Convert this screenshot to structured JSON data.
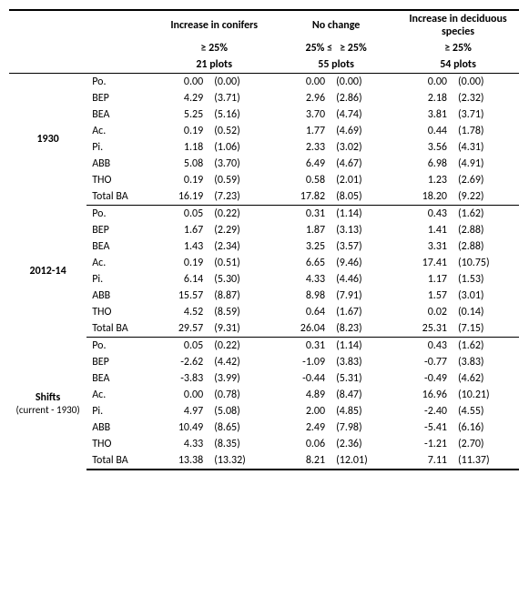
{
  "headers": {
    "col1": "Increase in conifers",
    "col2": "No change",
    "col3": "Increase in deciduous species",
    "thresh1": "≥ 25%",
    "thresh2a": "25% ≤",
    "thresh2b": "≥ 25%",
    "thresh3": "≥ 25%",
    "plots1": "21 plots",
    "plots2": "55 plots",
    "plots3": "54 plots"
  },
  "sections": [
    {
      "title": "1930",
      "subtitle": "",
      "rows": [
        {
          "sp": "Po.",
          "v1": "0.00",
          "p1": "(0.00)",
          "v2": "0.00",
          "p2": "(0.00)",
          "v3": "0.00",
          "p3": "(0.00)"
        },
        {
          "sp": "BEP",
          "v1": "4.29",
          "p1": "(3.71)",
          "v2": "2.96",
          "p2": "(2.86)",
          "v3": "2.18",
          "p3": "(2.32)"
        },
        {
          "sp": "BEA",
          "v1": "5.25",
          "p1": "(5.16)",
          "v2": "3.70",
          "p2": "(4.74)",
          "v3": "3.81",
          "p3": "(3.71)"
        },
        {
          "sp": "Ac.",
          "v1": "0.19",
          "p1": "(0.52)",
          "v2": "1.77",
          "p2": "(4.69)",
          "v3": "0.44",
          "p3": "(1.78)"
        },
        {
          "sp": "Pi.",
          "v1": "1.18",
          "p1": "(1.06)",
          "v2": "2.33",
          "p2": "(3.02)",
          "v3": "3.56",
          "p3": "(4.31)"
        },
        {
          "sp": "ABB",
          "v1": "5.08",
          "p1": "(3.70)",
          "v2": "6.49",
          "p2": "(4.67)",
          "v3": "6.98",
          "p3": "(4.91)"
        },
        {
          "sp": "THO",
          "v1": "0.19",
          "p1": "(0.59)",
          "v2": "0.58",
          "p2": "(2.01)",
          "v3": "1.23",
          "p3": "(2.69)"
        },
        {
          "sp": "Total BA",
          "v1": "16.19",
          "p1": "(7.23)",
          "v2": "17.82",
          "p2": "(8.05)",
          "v3": "18.20",
          "p3": "(9.22)"
        }
      ]
    },
    {
      "title": "2012-14",
      "subtitle": "",
      "rows": [
        {
          "sp": "Po.",
          "v1": "0.05",
          "p1": "(0.22)",
          "v2": "0.31",
          "p2": "(1.14)",
          "v3": "0.43",
          "p3": "(1.62)"
        },
        {
          "sp": "BEP",
          "v1": "1.67",
          "p1": "(2.29)",
          "v2": "1.87",
          "p2": "(3.13)",
          "v3": "1.41",
          "p3": "(2.88)"
        },
        {
          "sp": "BEA",
          "v1": "1.43",
          "p1": "(2.34)",
          "v2": "3.25",
          "p2": "(3.57)",
          "v3": "3.31",
          "p3": "(2.88)"
        },
        {
          "sp": "Ac.",
          "v1": "0.19",
          "p1": "(0.51)",
          "v2": "6.65",
          "p2": "(9.46)",
          "v3": "17.41",
          "p3": "(10.75)"
        },
        {
          "sp": "Pi.",
          "v1": "6.14",
          "p1": "(5.30)",
          "v2": "4.33",
          "p2": "(4.46)",
          "v3": "1.17",
          "p3": "(1.53)"
        },
        {
          "sp": "ABB",
          "v1": "15.57",
          "p1": "(8.87)",
          "v2": "8.98",
          "p2": "(7.91)",
          "v3": "1.57",
          "p3": "(3.01)"
        },
        {
          "sp": "THO",
          "v1": "4.52",
          "p1": "(8.59)",
          "v2": "0.64",
          "p2": "(1.67)",
          "v3": "0.02",
          "p3": "(0.14)"
        },
        {
          "sp": "Total BA",
          "v1": "29.57",
          "p1": "(9.31)",
          "v2": "26.04",
          "p2": "(8.23)",
          "v3": "25.31",
          "p3": "(7.15)"
        }
      ]
    },
    {
      "title": "Shifts",
      "subtitle": "(current - 1930)",
      "rows": [
        {
          "sp": "Po.",
          "v1": "0.05",
          "p1": "(0.22)",
          "v2": "0.31",
          "p2": "(1.14)",
          "v3": "0.43",
          "p3": "(1.62)"
        },
        {
          "sp": "BEP",
          "v1": "-2.62",
          "p1": "(4.42)",
          "v2": "-1.09",
          "p2": "(3.83)",
          "v3": "-0.77",
          "p3": "(3.83)"
        },
        {
          "sp": "BEA",
          "v1": "-3.83",
          "p1": "(3.99)",
          "v2": "-0.44",
          "p2": "(5.31)",
          "v3": "-0.49",
          "p3": "(4.62)"
        },
        {
          "sp": "Ac.",
          "v1": "0.00",
          "p1": "(0.78)",
          "v2": "4.89",
          "p2": "(8.47)",
          "v3": "16.96",
          "p3": "(10.21)"
        },
        {
          "sp": "Pi.",
          "v1": "4.97",
          "p1": "(5.08)",
          "v2": "2.00",
          "p2": "(4.85)",
          "v3": "-2.40",
          "p3": "(4.55)"
        },
        {
          "sp": "ABB",
          "v1": "10.49",
          "p1": "(8.65)",
          "v2": "2.49",
          "p2": "(7.98)",
          "v3": "-5.41",
          "p3": "(6.16)"
        },
        {
          "sp": "THO",
          "v1": "4.33",
          "p1": "(8.35)",
          "v2": "0.06",
          "p2": "(2.36)",
          "v3": "-1.21",
          "p3": "(2.70)"
        },
        {
          "sp": "Total BA",
          "v1": "13.38",
          "p1": "(13.32)",
          "v2": "8.21",
          "p2": "(12.01)",
          "v3": "7.11",
          "p3": "(11.37)"
        }
      ]
    }
  ]
}
